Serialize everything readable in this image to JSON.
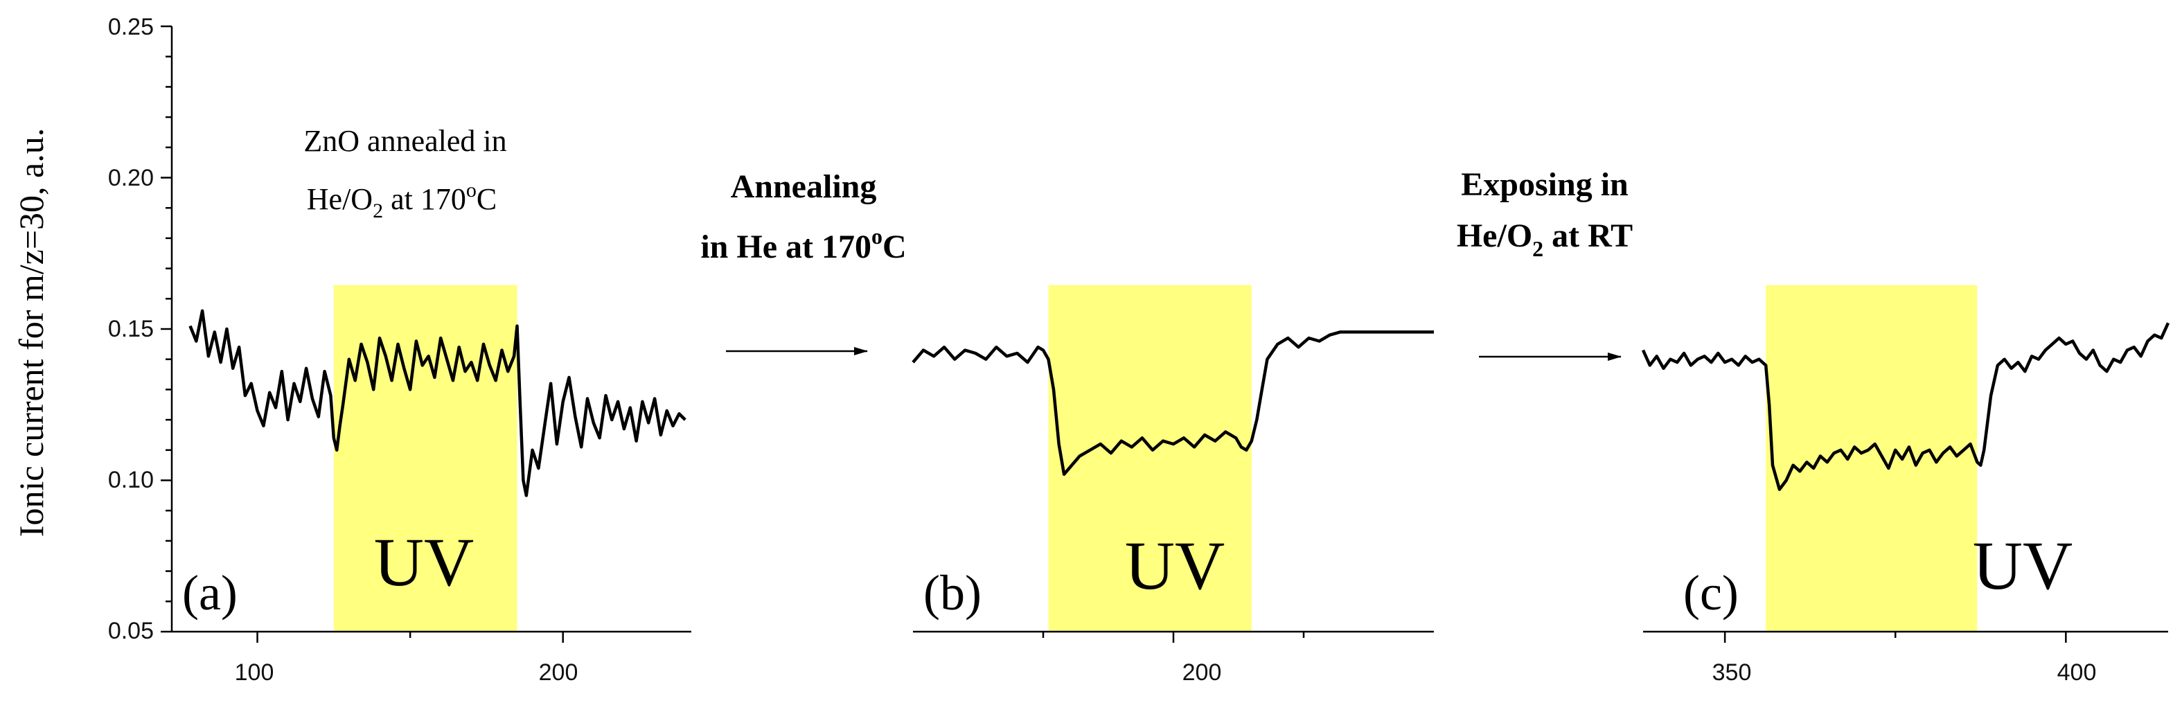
{
  "figure": {
    "ylabel": "Ionic current for m/z=30, a.u.",
    "ytick_labels": [
      "0.05",
      "0.10",
      "0.15",
      "0.20",
      "0.25"
    ],
    "arrow1_line1": "Annealing",
    "arrow1_line2": "in He at 170",
    "arrow1_sup": "o",
    "arrow1_end": "C",
    "arrow2_line1": "Exposing in",
    "arrow2_line2a": "He/O",
    "arrow2_sub": "2",
    "arrow2_line2b": " at RT",
    "uv_color": "#ffff80",
    "line_color": "#000000"
  },
  "panel_a": {
    "label": "(a)",
    "uv_label": "UV",
    "note_line1": "ZnO annealed in",
    "note_line2a": "He/O",
    "note_sub": "2",
    "note_line2b": " at 170",
    "note_sup": "o",
    "note_end": "C",
    "xtick_labels": [
      "100",
      "200"
    ]
  },
  "panel_b": {
    "label": "(b)",
    "uv_label": "UV",
    "xtick_labels": [
      "200"
    ]
  },
  "panel_c": {
    "label": "(c)",
    "uv_label": "UV",
    "xtick_labels": [
      "350",
      "400"
    ]
  },
  "chart_data": [
    {
      "type": "line",
      "panel": "(a)",
      "ylabel": "Ionic current for m/z=30, a.u.",
      "ylim": [
        0.05,
        0.25
      ],
      "xlim": [
        72,
        242
      ],
      "uv_range": [
        125,
        185
      ],
      "series": [
        {
          "x": [
            78,
            80,
            82,
            84,
            86,
            88,
            90,
            92,
            94,
            96,
            98,
            100,
            102,
            104,
            106,
            108,
            110,
            112,
            114,
            116,
            118,
            120,
            122,
            124,
            125,
            126,
            127,
            128,
            130,
            132,
            134,
            136,
            138,
            140,
            142,
            144,
            146,
            148,
            150,
            152,
            154,
            156,
            158,
            160,
            162,
            164,
            166,
            168,
            170,
            172,
            174,
            176,
            178,
            180,
            182,
            184,
            185,
            186,
            187,
            188,
            190,
            192,
            194,
            196,
            198,
            200,
            202,
            204,
            206,
            208,
            210,
            212,
            214,
            216,
            218,
            220,
            222,
            224,
            226,
            228,
            230,
            232,
            234,
            236,
            238,
            240
          ],
          "y": [
            0.151,
            0.146,
            0.156,
            0.141,
            0.149,
            0.139,
            0.15,
            0.137,
            0.144,
            0.128,
            0.132,
            0.123,
            0.118,
            0.129,
            0.124,
            0.136,
            0.12,
            0.132,
            0.126,
            0.137,
            0.127,
            0.121,
            0.136,
            0.128,
            0.114,
            0.11,
            0.118,
            0.125,
            0.14,
            0.133,
            0.145,
            0.139,
            0.13,
            0.147,
            0.141,
            0.133,
            0.145,
            0.137,
            0.13,
            0.146,
            0.138,
            0.141,
            0.134,
            0.147,
            0.14,
            0.133,
            0.144,
            0.136,
            0.139,
            0.133,
            0.145,
            0.138,
            0.133,
            0.143,
            0.136,
            0.141,
            0.151,
            0.125,
            0.1,
            0.095,
            0.11,
            0.104,
            0.118,
            0.132,
            0.112,
            0.126,
            0.134,
            0.121,
            0.111,
            0.127,
            0.119,
            0.114,
            0.128,
            0.12,
            0.126,
            0.117,
            0.124,
            0.113,
            0.126,
            0.119,
            0.127,
            0.115,
            0.123,
            0.118,
            0.122,
            0.12
          ]
        }
      ]
    },
    {
      "type": "line",
      "panel": "(b)",
      "ylim": [
        0.05,
        0.25
      ],
      "xlim": [
        150,
        250
      ],
      "uv_range": [
        176,
        215
      ],
      "series": [
        {
          "x": [
            150,
            152,
            154,
            156,
            158,
            160,
            162,
            164,
            166,
            168,
            170,
            172,
            174,
            175,
            176,
            177,
            178,
            179,
            180,
            182,
            184,
            186,
            188,
            190,
            192,
            194,
            196,
            198,
            200,
            202,
            204,
            206,
            208,
            210,
            212,
            213,
            214,
            215,
            216,
            217,
            218,
            220,
            222,
            224,
            226,
            228,
            230,
            232,
            235,
            240,
            245,
            250
          ],
          "y": [
            0.139,
            0.143,
            0.141,
            0.144,
            0.14,
            0.143,
            0.142,
            0.14,
            0.144,
            0.141,
            0.142,
            0.139,
            0.144,
            0.143,
            0.14,
            0.13,
            0.112,
            0.102,
            0.104,
            0.108,
            0.11,
            0.112,
            0.109,
            0.113,
            0.111,
            0.114,
            0.11,
            0.113,
            0.112,
            0.114,
            0.111,
            0.115,
            0.113,
            0.116,
            0.114,
            0.111,
            0.11,
            0.113,
            0.12,
            0.13,
            0.14,
            0.145,
            0.147,
            0.144,
            0.147,
            0.146,
            0.148,
            0.149,
            0.149,
            0.149,
            0.149,
            0.149
          ]
        }
      ]
    },
    {
      "type": "line",
      "panel": "(c)",
      "ylim": [
        0.05,
        0.25
      ],
      "xlim": [
        338,
        415
      ],
      "uv_range": [
        356,
        387
      ],
      "series": [
        {
          "x": [
            338,
            339,
            340,
            341,
            342,
            343,
            344,
            345,
            346,
            347,
            348,
            349,
            350,
            351,
            352,
            353,
            354,
            355,
            356,
            356.5,
            357,
            358,
            359,
            360,
            361,
            362,
            363,
            364,
            365,
            366,
            367,
            368,
            369,
            370,
            371,
            372,
            373,
            374,
            375,
            376,
            377,
            378,
            379,
            380,
            381,
            382,
            383,
            384,
            385,
            386,
            387,
            387.5,
            388,
            389,
            390,
            391,
            392,
            393,
            394,
            395,
            396,
            397,
            398,
            399,
            400,
            401,
            402,
            403,
            404,
            405,
            406,
            407,
            408,
            409,
            410,
            411,
            412,
            413,
            414,
            415
          ],
          "y": [
            0.143,
            0.138,
            0.141,
            0.137,
            0.14,
            0.139,
            0.142,
            0.138,
            0.14,
            0.141,
            0.139,
            0.142,
            0.139,
            0.14,
            0.138,
            0.141,
            0.139,
            0.14,
            0.138,
            0.125,
            0.105,
            0.097,
            0.1,
            0.105,
            0.103,
            0.106,
            0.104,
            0.108,
            0.106,
            0.109,
            0.11,
            0.107,
            0.111,
            0.109,
            0.11,
            0.112,
            0.108,
            0.104,
            0.11,
            0.107,
            0.111,
            0.105,
            0.109,
            0.11,
            0.106,
            0.109,
            0.111,
            0.108,
            0.11,
            0.112,
            0.106,
            0.105,
            0.11,
            0.128,
            0.138,
            0.14,
            0.137,
            0.139,
            0.136,
            0.141,
            0.14,
            0.143,
            0.145,
            0.147,
            0.145,
            0.146,
            0.142,
            0.14,
            0.143,
            0.138,
            0.136,
            0.14,
            0.139,
            0.143,
            0.144,
            0.141,
            0.146,
            0.148,
            0.147,
            0.152
          ]
        }
      ]
    }
  ]
}
